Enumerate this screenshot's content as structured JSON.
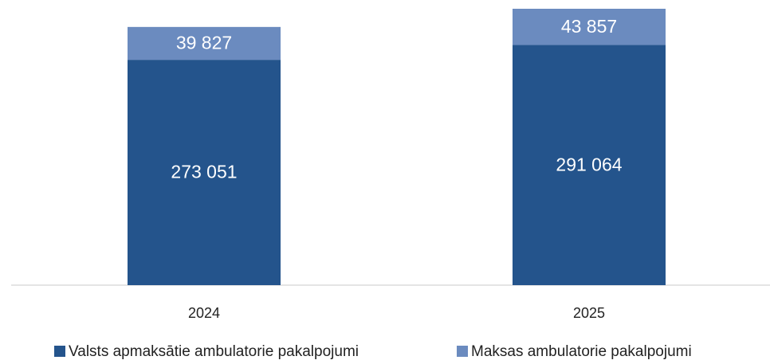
{
  "chart_data": {
    "type": "stacked_bar",
    "categories": [
      "2024",
      "2025"
    ],
    "series": [
      {
        "name": "Valsts apmaksātie ambulatorie pakalpojumi",
        "color": "#24548c",
        "values": [
          273051,
          291064
        ],
        "value_labels": [
          "273 051",
          "291 064"
        ]
      },
      {
        "name": "Maksas ambulatorie pakalpojumi",
        "color": "#6b8bbf",
        "values": [
          39827,
          43857
        ],
        "value_labels": [
          "39 827",
          "43 857"
        ]
      }
    ]
  }
}
